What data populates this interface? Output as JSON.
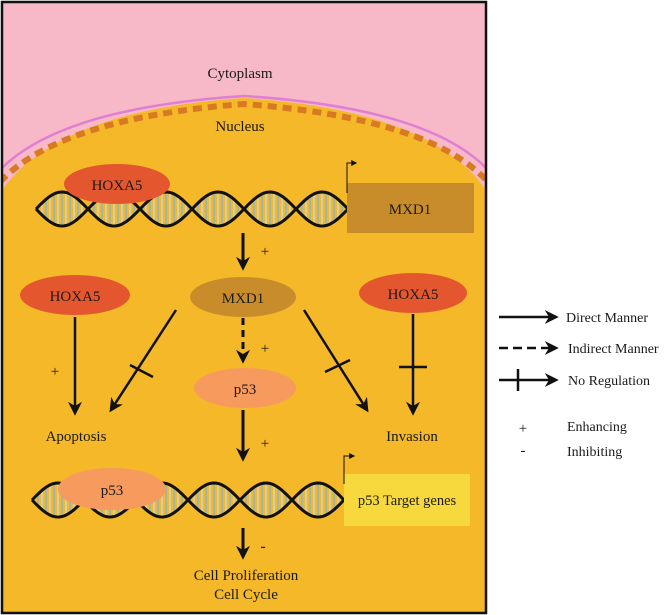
{
  "regions": {
    "cytoplasm": "Cytoplasm",
    "nucleus": "Nucleus"
  },
  "nodes": {
    "hoxa5_top": "HOXA5",
    "mxd1_gene": "MXD1",
    "hoxa5_left": "HOXA5",
    "mxd1_protein": "MXD1",
    "hoxa5_right": "HOXA5",
    "p53_protein": "p53",
    "p53_bound": "p53",
    "p53_targets": "p53 Target genes"
  },
  "outcomes": {
    "apoptosis": "Apoptosis",
    "invasion": "Invasion",
    "proliferation_line1": "Cell Proliferation",
    "proliferation_line2": "Cell Cycle"
  },
  "edge_signs": {
    "gene_to_mxd1": "+",
    "mxd1_to_p53": "+",
    "hoxa5_to_apoptosis": "+",
    "p53_to_targets": "+",
    "targets_to_proliferation": "-"
  },
  "legend": {
    "direct": "Direct Manner",
    "indirect": "Indirect Manner",
    "none": "No Regulation",
    "enhancing_symbol": "+",
    "enhancing": "Enhancing",
    "inhibiting_symbol": "-",
    "inhibiting": "Inhibiting"
  },
  "colors": {
    "cytoplasm": "#f7b8c8",
    "nucleus": "#f4b829",
    "nuclear_envelope": "#d77a22",
    "hoxa5": "#e4572e",
    "mxd1": "#c98c2b",
    "p53": "#f79a5d",
    "target_box": "#f7d93e",
    "dna_fill": "#b9c9b0"
  }
}
